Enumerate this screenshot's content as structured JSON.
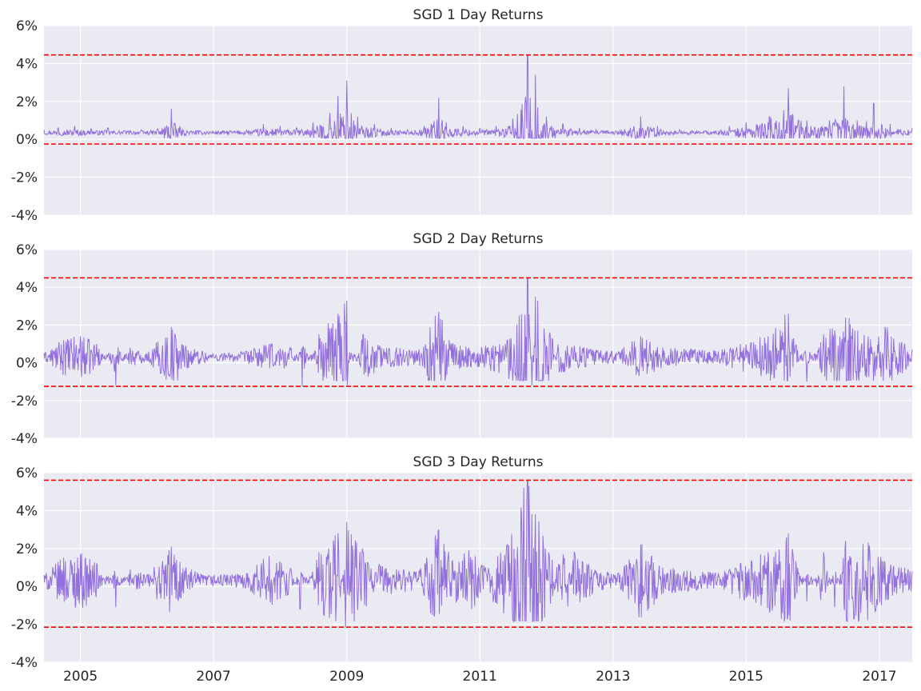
{
  "chart_data": [
    {
      "type": "line",
      "title": "SGD 1 Day Returns",
      "xlabel": "",
      "ylabel": "",
      "xlim": [
        "2004-06-15",
        "2017-06-30"
      ],
      "ylim": [
        -4,
        6
      ],
      "y_ticks": [
        -4,
        -2,
        0,
        2,
        4,
        6
      ],
      "y_tick_labels": [
        "-4%",
        "-2%",
        "0%",
        "2%",
        "4%",
        "6%"
      ],
      "x_ticks": [
        "2005",
        "2007",
        "2009",
        "2011",
        "2013",
        "2015",
        "2017"
      ],
      "x_tick_labels": [],
      "grid": true,
      "line_color": "#9370DB",
      "threshold_color": "#FF0000",
      "thresholds": [
        4.45,
        -0.25
      ],
      "series": [
        {
          "points": [
            [
              "2004-06-15",
              0.5
            ],
            [
              "2004-09-01",
              0.6
            ],
            [
              "2004-12-01",
              0.7
            ],
            [
              "2005-03-01",
              0.55
            ],
            [
              "2005-06-01",
              0.6
            ],
            [
              "2005-09-01",
              0.45
            ],
            [
              "2005-12-01",
              0.5
            ],
            [
              "2006-03-01",
              0.55
            ],
            [
              "2006-05-15",
              1.6
            ],
            [
              "2006-07-01",
              0.7
            ],
            [
              "2006-10-01",
              0.45
            ],
            [
              "2007-01-01",
              0.4
            ],
            [
              "2007-04-01",
              0.45
            ],
            [
              "2007-07-01",
              0.5
            ],
            [
              "2007-10-01",
              0.8
            ],
            [
              "2008-01-01",
              0.7
            ],
            [
              "2008-04-01",
              0.6
            ],
            [
              "2008-07-01",
              0.9
            ],
            [
              "2008-10-01",
              1.4
            ],
            [
              "2008-11-15",
              2.3
            ],
            [
              "2009-01-01",
              3.1
            ],
            [
              "2009-03-01",
              1.2
            ],
            [
              "2009-06-01",
              0.8
            ],
            [
              "2009-09-01",
              0.6
            ],
            [
              "2009-12-01",
              0.5
            ],
            [
              "2010-03-01",
              0.7
            ],
            [
              "2010-05-20",
              2.2
            ],
            [
              "2010-07-01",
              0.9
            ],
            [
              "2010-10-01",
              0.7
            ],
            [
              "2011-01-01",
              0.6
            ],
            [
              "2011-04-01",
              0.7
            ],
            [
              "2011-07-01",
              1.1
            ],
            [
              "2011-09-20",
              4.45
            ],
            [
              "2011-11-01",
              3.4
            ],
            [
              "2012-01-01",
              1.2
            ],
            [
              "2012-04-01",
              0.8
            ],
            [
              "2012-07-01",
              0.6
            ],
            [
              "2012-10-01",
              0.5
            ],
            [
              "2013-01-01",
              0.4
            ],
            [
              "2013-06-01",
              1.2
            ],
            [
              "2013-09-01",
              0.7
            ],
            [
              "2014-01-01",
              0.5
            ],
            [
              "2014-06-01",
              0.4
            ],
            [
              "2014-10-01",
              0.7
            ],
            [
              "2015-01-01",
              0.9
            ],
            [
              "2015-08-20",
              2.7
            ],
            [
              "2015-12-01",
              1.0
            ],
            [
              "2016-04-01",
              1.0
            ],
            [
              "2016-06-20",
              2.8
            ],
            [
              "2016-09-01",
              1.0
            ],
            [
              "2016-12-01",
              1.9
            ],
            [
              "2017-03-01",
              0.8
            ],
            [
              "2017-06-30",
              0.6
            ]
          ]
        }
      ]
    },
    {
      "type": "line",
      "title": "SGD 2 Day Returns",
      "xlabel": "",
      "ylabel": "",
      "xlim": [
        "2004-06-15",
        "2017-06-30"
      ],
      "ylim": [
        -4,
        6
      ],
      "y_ticks": [
        -4,
        -2,
        0,
        2,
        4,
        6
      ],
      "y_tick_labels": [
        "-4%",
        "-2%",
        "0%",
        "2%",
        "4%",
        "6%"
      ],
      "x_ticks": [
        "2005",
        "2007",
        "2009",
        "2011",
        "2013",
        "2015",
        "2017"
      ],
      "x_tick_labels": [],
      "grid": true,
      "line_color": "#9370DB",
      "threshold_color": "#FF0000",
      "thresholds": [
        4.5,
        -1.25
      ],
      "series": [
        {
          "points": [
            [
              "2004-06-15",
              0.5
            ],
            [
              "2004-10-01",
              1.2
            ],
            [
              "2005-01-01",
              1.4
            ],
            [
              "2005-04-01",
              1.0
            ],
            [
              "2005-07-15",
              -1.2
            ],
            [
              "2005-10-01",
              0.8
            ],
            [
              "2006-01-01",
              0.5
            ],
            [
              "2006-05-15",
              1.9
            ],
            [
              "2006-08-01",
              0.9
            ],
            [
              "2006-11-01",
              0.6
            ],
            [
              "2007-03-01",
              0.5
            ],
            [
              "2007-07-01",
              0.6
            ],
            [
              "2007-11-01",
              1.0
            ],
            [
              "2008-03-01",
              0.8
            ],
            [
              "2008-05-01",
              -1.25
            ],
            [
              "2008-08-01",
              1.5
            ],
            [
              "2008-11-15",
              2.6
            ],
            [
              "2009-01-01",
              3.3
            ],
            [
              "2009-01-05",
              -1.2
            ],
            [
              "2009-04-01",
              1.5
            ],
            [
              "2009-07-01",
              0.9
            ],
            [
              "2009-10-01",
              0.8
            ],
            [
              "2010-02-01",
              0.7
            ],
            [
              "2010-05-20",
              2.7
            ],
            [
              "2010-08-01",
              1.0
            ],
            [
              "2010-11-01",
              0.8
            ],
            [
              "2011-02-01",
              0.9
            ],
            [
              "2011-06-01",
              1.2
            ],
            [
              "2011-09-20",
              4.5
            ],
            [
              "2011-10-15",
              -1.2
            ],
            [
              "2011-11-01",
              3.5
            ],
            [
              "2012-02-01",
              1.3
            ],
            [
              "2012-06-01",
              0.9
            ],
            [
              "2012-10-01",
              0.7
            ],
            [
              "2013-02-01",
              0.6
            ],
            [
              "2013-06-01",
              1.4
            ],
            [
              "2013-10-01",
              0.8
            ],
            [
              "2014-03-01",
              0.7
            ],
            [
              "2014-08-01",
              0.6
            ],
            [
              "2014-12-01",
              1.0
            ],
            [
              "2015-05-01",
              1.4
            ],
            [
              "2015-08-20",
              2.6
            ],
            [
              "2015-12-01",
              -1.0
            ],
            [
              "2016-03-01",
              1.5
            ],
            [
              "2016-07-01",
              2.4
            ],
            [
              "2016-11-01",
              1.4
            ],
            [
              "2017-02-01",
              1.9
            ],
            [
              "2017-06-30",
              0.7
            ]
          ]
        }
      ]
    },
    {
      "type": "line",
      "title": "SGD 3 Day Returns",
      "xlabel": "",
      "ylabel": "",
      "xlim": [
        "2004-06-15",
        "2017-06-30"
      ],
      "ylim": [
        -4,
        6
      ],
      "y_ticks": [
        -4,
        -2,
        0,
        2,
        4,
        6
      ],
      "y_tick_labels": [
        "-4%",
        "-2%",
        "0%",
        "2%",
        "4%",
        "6%"
      ],
      "x_ticks": [
        "2005",
        "2007",
        "2009",
        "2011",
        "2013",
        "2015",
        "2017"
      ],
      "x_tick_labels": [
        "2005",
        "2007",
        "2009",
        "2011",
        "2013",
        "2015",
        "2017"
      ],
      "grid": true,
      "line_color": "#9370DB",
      "threshold_color": "#FF0000",
      "thresholds": [
        5.6,
        -2.15
      ],
      "series": [
        {
          "points": [
            [
              "2004-06-15",
              0.6
            ],
            [
              "2004-10-01",
              1.5
            ],
            [
              "2005-01-01",
              1.7
            ],
            [
              "2005-04-01",
              1.2
            ],
            [
              "2005-07-15",
              -1.1
            ],
            [
              "2005-10-01",
              0.9
            ],
            [
              "2006-01-01",
              0.6
            ],
            [
              "2006-05-15",
              2.1
            ],
            [
              "2006-08-01",
              1.0
            ],
            [
              "2006-11-01",
              0.6
            ],
            [
              "2007-03-01",
              0.6
            ],
            [
              "2007-07-01",
              0.7
            ],
            [
              "2007-11-01",
              1.6
            ],
            [
              "2008-03-01",
              0.9
            ],
            [
              "2008-04-20",
              -1.2
            ],
            [
              "2008-08-01",
              1.8
            ],
            [
              "2008-11-15",
              2.8
            ],
            [
              "2008-12-25",
              -2.15
            ],
            [
              "2009-01-01",
              3.4
            ],
            [
              "2009-04-01",
              1.8
            ],
            [
              "2009-07-01",
              1.1
            ],
            [
              "2009-10-01",
              0.9
            ],
            [
              "2010-02-01",
              0.8
            ],
            [
              "2010-05-20",
              3.0
            ],
            [
              "2010-08-01",
              1.3
            ],
            [
              "2010-11-01",
              1.9
            ],
            [
              "2011-02-01",
              1.0
            ],
            [
              "2011-06-01",
              2.2
            ],
            [
              "2011-09-20",
              5.6
            ],
            [
              "2011-11-01",
              3.8
            ],
            [
              "2012-02-01",
              1.4
            ],
            [
              "2012-06-01",
              1.8
            ],
            [
              "2012-10-01",
              0.8
            ],
            [
              "2013-02-01",
              0.7
            ],
            [
              "2013-06-01",
              2.2
            ],
            [
              "2013-10-01",
              1.0
            ],
            [
              "2014-03-01",
              0.8
            ],
            [
              "2014-08-01",
              0.7
            ],
            [
              "2014-12-01",
              1.2
            ],
            [
              "2015-05-01",
              1.8
            ],
            [
              "2015-08-20",
              2.8
            ],
            [
              "2015-12-01",
              -0.8
            ],
            [
              "2016-03-01",
              1.8
            ],
            [
              "2016-05-01",
              -1.1
            ],
            [
              "2016-07-01",
              2.4
            ],
            [
              "2016-11-01",
              2.3
            ],
            [
              "2017-02-01",
              1.3
            ],
            [
              "2017-06-30",
              0.8
            ]
          ]
        }
      ]
    }
  ]
}
